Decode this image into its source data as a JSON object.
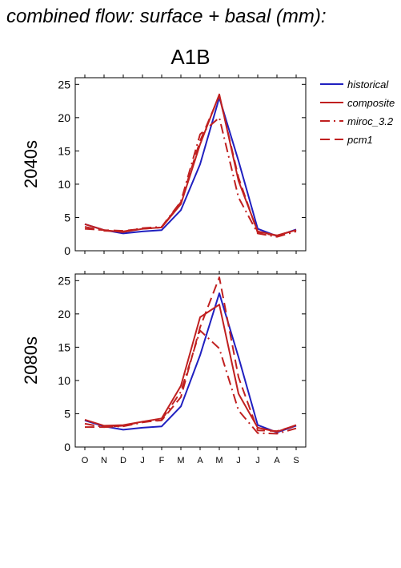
{
  "figure": {
    "title": "combined flow: surface + basal (mm):",
    "scenario": "A1B"
  },
  "colors": {
    "historical": "#2020c0",
    "model": "#c02020",
    "axis": "#000000"
  },
  "legend": {
    "placement": "right",
    "entries": [
      {
        "label": "historical",
        "dash": "solid",
        "color": "#2020c0"
      },
      {
        "label": "composite",
        "dash": "solid",
        "color": "#c02020"
      },
      {
        "label": "miroc_3.2",
        "dash": "dashdot",
        "color": "#c02020"
      },
      {
        "label": "pcm1",
        "dash": "dash",
        "color": "#c02020"
      }
    ]
  },
  "chart_data": [
    {
      "type": "line",
      "panel": "2040s",
      "ylabel": "2040s",
      "x": [
        "O",
        "N",
        "D",
        "J",
        "F",
        "M",
        "A",
        "M",
        "J",
        "J",
        "A",
        "S"
      ],
      "ylim": [
        0,
        26
      ],
      "yticks": [
        0,
        5,
        10,
        15,
        20,
        25
      ],
      "series": [
        {
          "name": "historical",
          "values": [
            4.0,
            3.1,
            2.6,
            2.9,
            3.1,
            6.1,
            13.0,
            23.0,
            13.5,
            3.3,
            2.2,
            3.2
          ]
        },
        {
          "name": "composite",
          "values": [
            4.0,
            3.1,
            2.8,
            3.3,
            3.5,
            7.0,
            16.0,
            23.5,
            10.5,
            2.9,
            2.3,
            3.1
          ]
        },
        {
          "name": "miroc_3.2",
          "values": [
            3.6,
            3.0,
            2.9,
            3.4,
            3.6,
            7.4,
            17.5,
            20.0,
            8.0,
            2.6,
            2.1,
            2.9
          ]
        },
        {
          "name": "pcm1",
          "values": [
            3.3,
            3.1,
            3.0,
            3.3,
            3.5,
            7.3,
            16.5,
            23.3,
            11.0,
            2.7,
            2.3,
            3.1
          ]
        }
      ]
    },
    {
      "type": "line",
      "panel": "2080s",
      "ylabel": "2080s",
      "x": [
        "O",
        "N",
        "D",
        "J",
        "F",
        "M",
        "A",
        "M",
        "J",
        "J",
        "A",
        "S"
      ],
      "ylim": [
        0,
        26
      ],
      "yticks": [
        0,
        5,
        10,
        15,
        20,
        25
      ],
      "series": [
        {
          "name": "historical",
          "values": [
            4.0,
            3.1,
            2.6,
            2.9,
            3.1,
            6.1,
            13.8,
            23.1,
            13.5,
            3.3,
            2.2,
            3.2
          ]
        },
        {
          "name": "composite",
          "values": [
            4.1,
            3.2,
            3.3,
            3.8,
            4.3,
            9.2,
            19.5,
            21.4,
            8.0,
            2.9,
            2.3,
            3.3
          ]
        },
        {
          "name": "miroc_3.2",
          "values": [
            3.5,
            3.0,
            3.1,
            3.7,
            4.1,
            8.3,
            17.5,
            14.8,
            5.5,
            2.1,
            2.0,
            2.8
          ]
        },
        {
          "name": "pcm1",
          "values": [
            3.0,
            3.0,
            3.2,
            3.8,
            4.0,
            7.5,
            18.0,
            25.5,
            10.5,
            2.5,
            2.4,
            3.2
          ]
        }
      ]
    }
  ]
}
